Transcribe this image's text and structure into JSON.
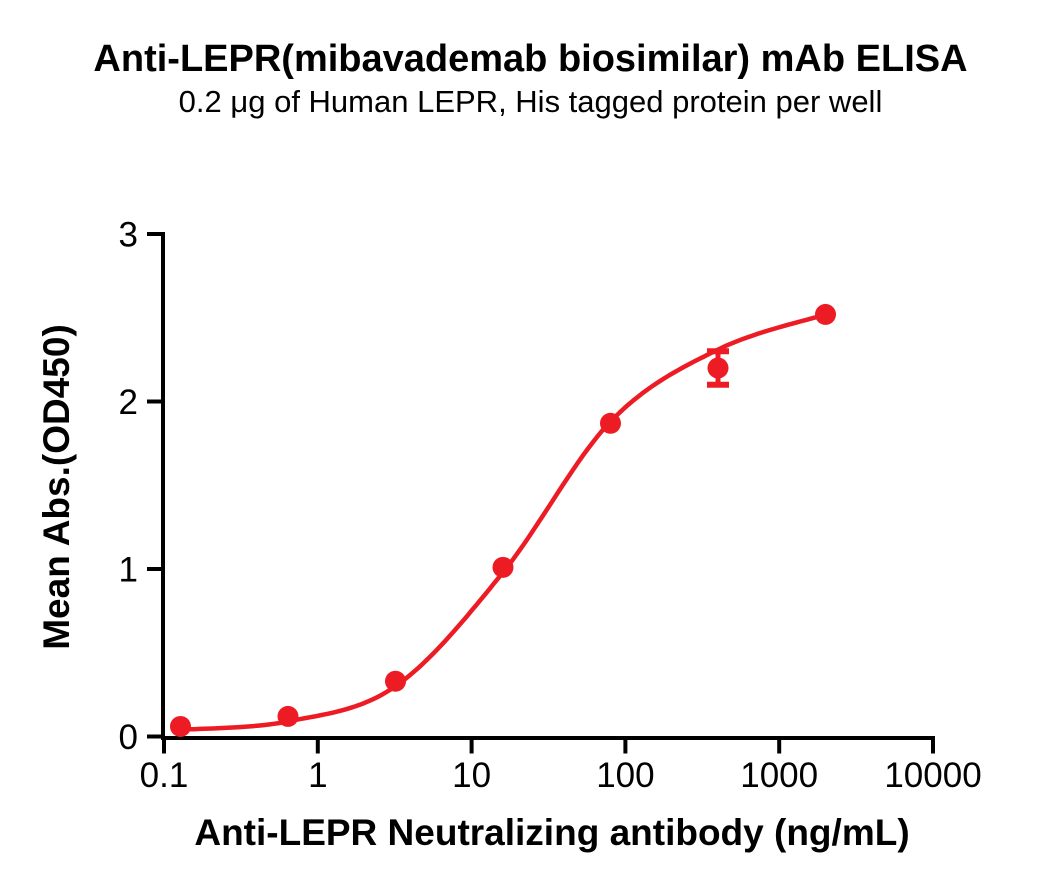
{
  "chart_data": {
    "type": "scatter",
    "title": "Anti-LEPR(mibavademab biosimilar) mAb ELISA",
    "subtitle": "0.2 μg of Human LEPR, His tagged protein per well",
    "xlabel": "Anti-LEPR Neutralizing antibody (ng/mL)",
    "ylabel": "Mean Abs.(OD450)",
    "x_scale": "log",
    "xlim": [
      0.1,
      10000
    ],
    "ylim": [
      0,
      3
    ],
    "x_ticks": [
      0.1,
      1,
      10,
      100,
      1000,
      10000
    ],
    "x_tick_labels": [
      "0.1",
      "1",
      "10",
      "100",
      "1000",
      "10000"
    ],
    "y_ticks": [
      0,
      1,
      2,
      3
    ],
    "y_tick_labels": [
      "0",
      "1",
      "2",
      "3"
    ],
    "grid": false,
    "legend": "none",
    "axis_color": "#000000",
    "background_color": "#ffffff",
    "series": [
      {
        "name": "Anti-LEPR(mibavademab biosimilar) mAb",
        "color": "#ED1C24",
        "marker": "circle",
        "points": [
          {
            "x": 0.128,
            "y": 0.06
          },
          {
            "x": 0.64,
            "y": 0.12
          },
          {
            "x": 3.2,
            "y": 0.33
          },
          {
            "x": 16,
            "y": 1.01
          },
          {
            "x": 80,
            "y": 1.87
          },
          {
            "x": 400,
            "y": 2.2,
            "y_error": 0.1
          },
          {
            "x": 2000,
            "y": 2.52
          }
        ],
        "fit_curve": {
          "type": "sigmoidal-dose-response",
          "control_points": [
            [
              0.128,
              0.04
            ],
            [
              0.64,
              0.09
            ],
            [
              3.2,
              0.3
            ],
            [
              16,
              0.98
            ],
            [
              80,
              1.88
            ],
            [
              400,
              2.31
            ],
            [
              2000,
              2.52
            ]
          ]
        }
      }
    ]
  }
}
